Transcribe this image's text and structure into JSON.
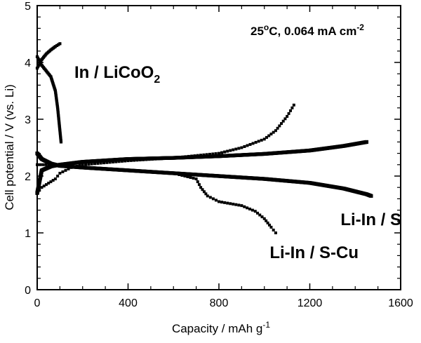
{
  "chart_data": {
    "type": "scatter",
    "title": "",
    "xlabel": "Capacity / mAh g-1",
    "ylabel": "Cell potential / V (vs. Li)",
    "xlim": [
      0,
      1600
    ],
    "ylim": [
      0,
      5
    ],
    "x_ticks": [
      0,
      400,
      800,
      1200,
      1600
    ],
    "y_ticks": [
      0,
      1,
      2,
      3,
      4,
      5
    ],
    "grid": false,
    "legend": "none",
    "annotation": "25oC, 0.064 mA cm-2",
    "series": [
      {
        "name": "In / LiCoO2",
        "segments": [
          {
            "phase": "charge",
            "x": [
              0,
              20,
              40,
              60,
              80,
              100
            ],
            "y": [
              3.9,
              4.05,
              4.15,
              4.22,
              4.28,
              4.33
            ]
          },
          {
            "phase": "discharge",
            "x": [
              0,
              20,
              40,
              60,
              80,
              90,
              100,
              105
            ],
            "y": [
              4.1,
              3.95,
              3.85,
              3.75,
              3.5,
              3.2,
              2.8,
              2.6
            ]
          }
        ]
      },
      {
        "name": "Li-In / S",
        "segments": [
          {
            "phase": "charge",
            "x": [
              0,
              20,
              60,
              100,
              200,
              400,
              600,
              800,
              1000,
              1200,
              1350,
              1450
            ],
            "y": [
              1.7,
              2.1,
              2.17,
              2.2,
              2.25,
              2.3,
              2.32,
              2.35,
              2.39,
              2.45,
              2.53,
              2.6
            ]
          },
          {
            "phase": "discharge",
            "x": [
              0,
              20,
              60,
              100,
              200,
              400,
              600,
              800,
              1000,
              1200,
              1350,
              1450,
              1470
            ],
            "y": [
              2.4,
              2.3,
              2.22,
              2.18,
              2.15,
              2.1,
              2.05,
              2.0,
              1.95,
              1.88,
              1.78,
              1.68,
              1.65
            ]
          }
        ]
      },
      {
        "name": "Li-In / S-Cu",
        "segments": [
          {
            "phase": "charge",
            "x": [
              0,
              20,
              40,
              60,
              80,
              100,
              150,
              200,
              400,
              600,
              800,
              900,
              1000,
              1050,
              1100,
              1130
            ],
            "y": [
              1.7,
              1.8,
              1.85,
              1.9,
              1.95,
              2.05,
              2.15,
              2.2,
              2.27,
              2.32,
              2.4,
              2.5,
              2.65,
              2.8,
              3.05,
              3.25
            ]
          },
          {
            "phase": "discharge",
            "x": [
              0,
              50,
              100,
              200,
              400,
              600,
              700,
              720,
              750,
              800,
              900,
              960,
              1000,
              1030,
              1050
            ],
            "y": [
              2.2,
              2.2,
              2.18,
              2.15,
              2.1,
              2.05,
              1.95,
              1.8,
              1.65,
              1.55,
              1.48,
              1.38,
              1.25,
              1.1,
              1.0
            ]
          }
        ]
      }
    ]
  }
}
